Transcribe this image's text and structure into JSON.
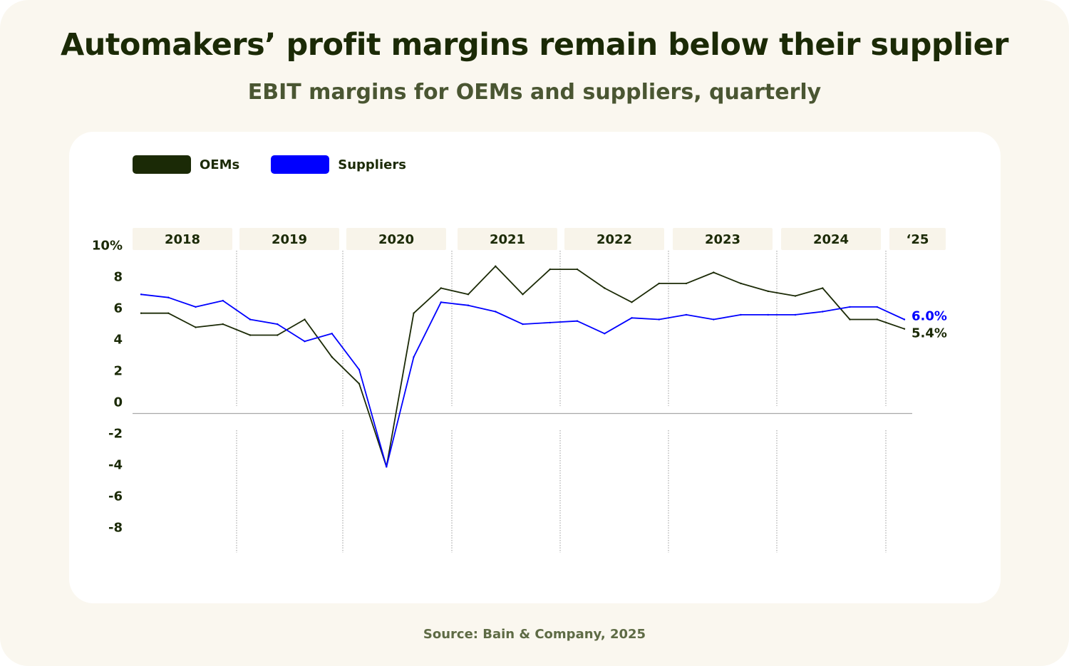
{
  "title": "Automakers’ profit margins remain below their supplier",
  "subtitle": "EBIT margins for OEMs and suppliers, quarterly",
  "source": "Source: Bain & Company, 2025",
  "colors": {
    "oems": "#1b2a06",
    "suppliers": "#0000ff",
    "year_tab": "#f8f4ea",
    "zero_line": "#a8a8a8",
    "divider": "#9a9a9a"
  },
  "chart_data": {
    "type": "line",
    "y_ticks": [
      "10%",
      "8",
      "6",
      "4",
      "2",
      "0",
      "-2",
      "-4",
      "-6",
      "-8"
    ],
    "ylim": [
      -8,
      10
    ],
    "year_labels": [
      "2018",
      "2019",
      "2020",
      "2021",
      "2022",
      "2023",
      "2024",
      "‘25"
    ],
    "x": [
      "2018 Q1",
      "2018 Q2",
      "2018 Q3",
      "2018 Q4",
      "2019 Q1",
      "2019 Q2",
      "2019 Q3",
      "2019 Q4",
      "2020 Q1",
      "2020 Q2",
      "2020 Q3",
      "2020 Q4",
      "2021 Q1",
      "2021 Q2",
      "2021 Q3",
      "2021 Q4",
      "2022 Q1",
      "2022 Q2",
      "2022 Q3",
      "2022 Q4",
      "2023 Q1",
      "2023 Q2",
      "2023 Q3",
      "2023 Q4",
      "2024 Q1",
      "2024 Q2",
      "2024 Q3",
      "2024 Q4",
      "2025 Q1"
    ],
    "grid": false,
    "legend_position": "top-left",
    "series": [
      {
        "name": "OEMs",
        "color": "#1b2a06",
        "values": [
          6.4,
          6.4,
          5.5,
          5.7,
          5.0,
          5.0,
          6.0,
          3.6,
          1.9,
          -3.4,
          6.4,
          8.0,
          7.6,
          9.4,
          7.6,
          9.2,
          9.2,
          8.0,
          7.1,
          8.3,
          8.3,
          9.0,
          8.3,
          7.8,
          7.5,
          8.0,
          6.0,
          6.0,
          5.4
        ],
        "end_label": "5.4%"
      },
      {
        "name": "Suppliers",
        "color": "#0000ff",
        "values": [
          7.6,
          7.4,
          6.8,
          7.2,
          6.0,
          5.7,
          4.6,
          5.1,
          2.8,
          -3.4,
          3.6,
          7.1,
          6.9,
          6.5,
          5.7,
          5.8,
          5.9,
          5.1,
          6.1,
          6.0,
          6.3,
          6.0,
          6.3,
          6.3,
          6.3,
          6.5,
          6.8,
          6.8,
          6.0
        ],
        "end_label": "6.0%"
      }
    ]
  }
}
